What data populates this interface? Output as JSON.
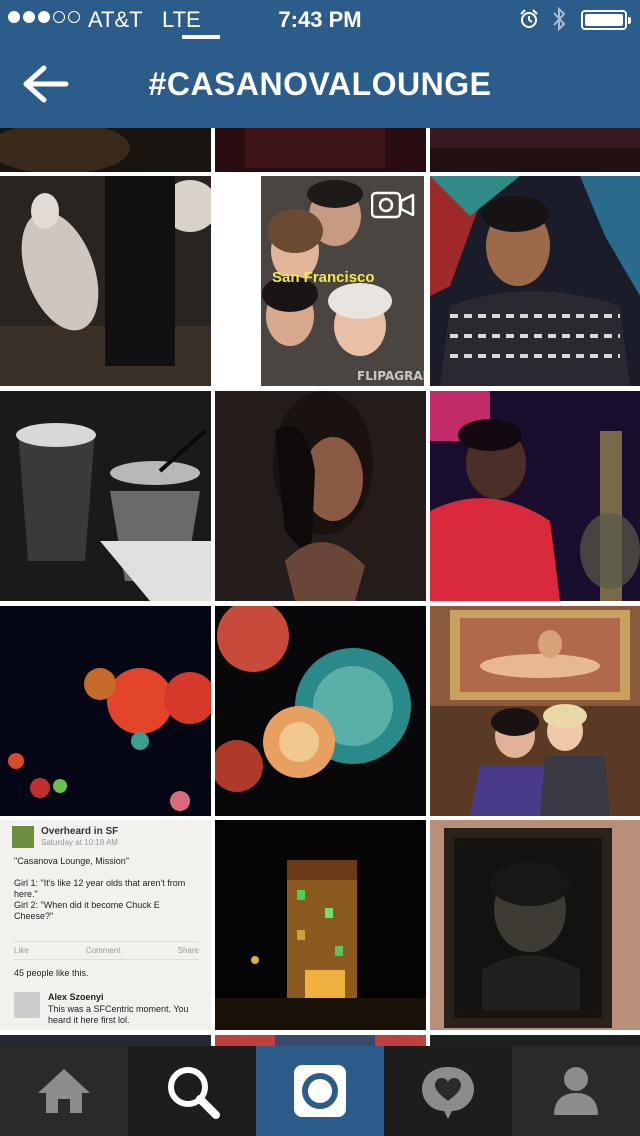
{
  "status_bar": {
    "carrier": "AT&T",
    "network": "LTE",
    "time": "7:43 PM",
    "signal_bars_filled": 3,
    "signal_bars_total": 5,
    "battery_level": 1.0
  },
  "nav": {
    "title": "#CASANOVALOUNGE",
    "back_icon": "back-arrow-icon"
  },
  "grid": {
    "video_icon": "video-camera-icon",
    "flipagram_watermark": "FLIPAGRAM",
    "flipagram_caption": "San Francisco",
    "post": {
      "author": "Overheard in SF",
      "timestamp": "Saturday at 10:18 AM",
      "lines": [
        "\"Casanova Lounge, Mission\"",
        "Girl 1: \"It's like 12 year olds that aren't from here.\"",
        "Girl 2: \"When did it become Chuck E Cheese?\""
      ],
      "actions": [
        "Like",
        "Comment",
        "Share"
      ],
      "likes": "45 people like this.",
      "commenter": "Alex Szoenyi",
      "comment": "This was a SFCentric moment. You heard it here first lol."
    }
  },
  "tab_bar": {
    "tabs": [
      {
        "icon": "home-icon",
        "active": false
      },
      {
        "icon": "search-icon",
        "active": false
      },
      {
        "icon": "camera-icon",
        "active": true
      },
      {
        "icon": "activity-heart-icon",
        "active": false
      },
      {
        "icon": "profile-icon",
        "active": false
      }
    ]
  },
  "colors": {
    "brand_blue": "#2c5d8a",
    "tab_bar": "#2a2a2a"
  }
}
